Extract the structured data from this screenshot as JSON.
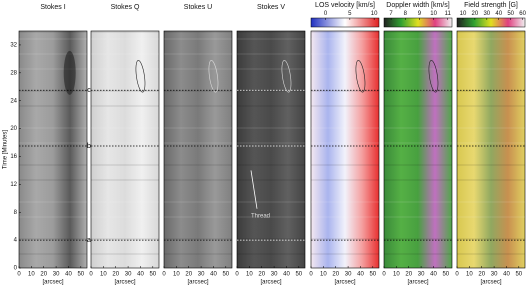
{
  "chart_data": [
    {
      "type": "image",
      "title": "Stokes I",
      "xlabel": "[arcsec]",
      "ylabel": "Time [Minutes]",
      "xlim": [
        0,
        55
      ],
      "xticks": [
        0,
        10,
        20,
        30,
        40,
        50
      ],
      "ylim": [
        0,
        34
      ],
      "yticks": [
        0,
        4,
        8,
        12,
        16,
        20,
        24,
        28,
        32
      ],
      "cmap": [
        "#8a8a8a",
        "#a8a8a8",
        "#9c9c9c",
        "#5a5a5a",
        "#b0b0b0"
      ]
    },
    {
      "type": "image",
      "title": "Stokes Q",
      "xlabel": "[arcsec]",
      "xlim": [
        0,
        55
      ],
      "xticks": [
        0,
        10,
        20,
        30,
        40,
        50
      ],
      "ylim": [
        0,
        34
      ],
      "cmap": [
        "#cfcfcf",
        "#e6e6e6",
        "#dcdcdc",
        "#f0f0f0",
        "#d8d8d8"
      ]
    },
    {
      "type": "image",
      "title": "Stokes U",
      "xlabel": "[arcsec]",
      "xlim": [
        0,
        55
      ],
      "xticks": [
        0,
        10,
        20,
        30,
        40,
        50
      ],
      "ylim": [
        0,
        34
      ],
      "cmap": [
        "#6a6a6a",
        "#8c8c8c",
        "#7a7a7a",
        "#999999",
        "#808080"
      ]
    },
    {
      "type": "image",
      "title": "Stokes V",
      "xlabel": "[arcsec]",
      "xlim": [
        0,
        55
      ],
      "xticks": [
        0,
        10,
        20,
        30,
        40,
        50
      ],
      "ylim": [
        0,
        34
      ],
      "annotation": "Thread",
      "cmap": [
        "#3c3c3c",
        "#555555",
        "#4a4a4a",
        "#606060",
        "#444444"
      ]
    },
    {
      "type": "image",
      "title": "LOS velocity [km/s]",
      "xlabel": "[arcsec]",
      "xlim": [
        0,
        55
      ],
      "xticks": [
        0,
        10,
        20,
        30,
        40,
        50
      ],
      "ylim": [
        0,
        34
      ],
      "clim": [
        -3,
        11
      ],
      "cticks": [
        0,
        5,
        10
      ],
      "cmap": [
        "#f4e8f0",
        "#aab4ee",
        "#f2f2fb",
        "#f4a0a0",
        "#e83030"
      ]
    },
    {
      "type": "image",
      "title": "Doppler width [km/s]",
      "xlabel": "[arcsec]",
      "xlim": [
        0,
        55
      ],
      "xticks": [
        0,
        10,
        20,
        30,
        40,
        50
      ],
      "ylim": [
        0,
        34
      ],
      "clim": [
        6.5,
        11.3
      ],
      "cticks": [
        7,
        8,
        9,
        10,
        11
      ],
      "cmap": [
        "#3a8a3a",
        "#55b045",
        "#48a040",
        "#c070c0",
        "#50a848"
      ]
    },
    {
      "type": "image",
      "title": "Field strength [G]",
      "xlabel": "[arcsec]",
      "xlim": [
        0,
        55
      ],
      "xticks": [
        0,
        10,
        20,
        30,
        40,
        50
      ],
      "ylim": [
        0,
        34
      ],
      "clim": [
        5,
        62
      ],
      "cticks": [
        10,
        20,
        30,
        40,
        50,
        60
      ],
      "cmap": [
        "#d8c850",
        "#e8d870",
        "#90a860",
        "#c89050",
        "#e0d060"
      ]
    }
  ],
  "events": [
    {
      "label": "a",
      "value": 4
    },
    {
      "label": "b",
      "value": 17.5
    },
    {
      "label": "c",
      "value": 25.5
    }
  ]
}
